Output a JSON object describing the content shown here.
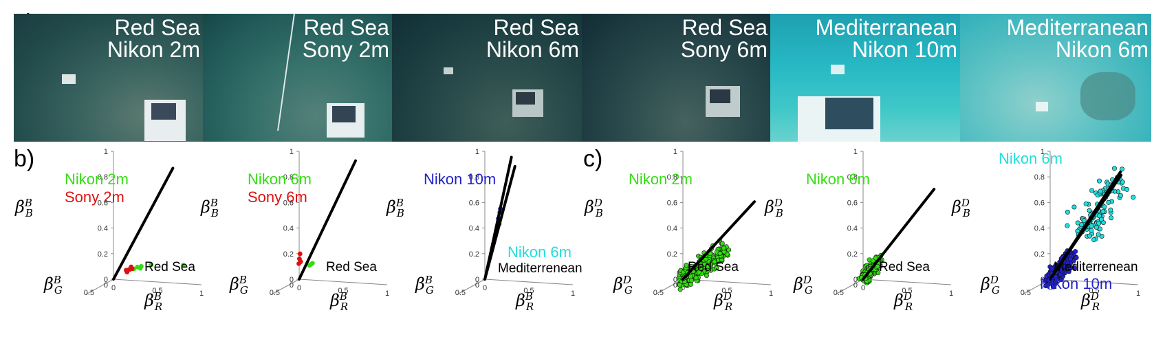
{
  "panel_labels": {
    "a": "a)",
    "b": "b)",
    "c": "c)"
  },
  "photos": [
    {
      "line1": "Red Sea",
      "line2": "Nikon 2m"
    },
    {
      "line1": "Red Sea",
      "line2": "Sony 2m"
    },
    {
      "line1": "Red Sea",
      "line2": "Nikon 6m"
    },
    {
      "line1": "Red Sea",
      "line2": "Sony 6m"
    },
    {
      "line1": "Mediterranean",
      "line2": "Nikon 10m"
    },
    {
      "line1": "Mediterranean",
      "line2": "Nikon 6m"
    }
  ],
  "axes": {
    "b": {
      "z_base": "β",
      "z_sup": "B",
      "z_sub": "B",
      "x_base": "β",
      "x_sup": "B",
      "x_sub": "R",
      "y_base": "β",
      "y_sup": "B",
      "y_sub": "G"
    },
    "c": {
      "z_base": "β",
      "z_sup": "D",
      "z_sub": "B",
      "x_base": "β",
      "x_sup": "D",
      "x_sub": "R",
      "y_base": "β",
      "y_sup": "D",
      "y_sub": "G"
    }
  },
  "colors": {
    "green": "#33dd11",
    "red": "#dd1111",
    "blue": "#2222cc",
    "cyan": "#22dddd",
    "black": "#000000"
  },
  "chart_data": [
    {
      "type": "scatter",
      "panel": "b",
      "region": "Red Sea",
      "labels": [
        "Nikon 2m",
        "Sony 2m"
      ],
      "z_ticks": [
        "0",
        "0.2",
        "0.4",
        "0.6",
        "0.8",
        "1"
      ],
      "x_ticks": [
        "0",
        "0.5",
        "1"
      ],
      "y_ticks": [
        "0",
        "0.5"
      ],
      "series": [
        {
          "name": "Nikon 2m",
          "color": "green",
          "points": [
            [
              0.3,
              0.22,
              0.12
            ],
            [
              0.35,
              0.25,
              0.14
            ],
            [
              0.4,
              0.27,
              0.15
            ],
            [
              0.38,
              0.24,
              0.13
            ],
            [
              0.52,
              0.3,
              0.17
            ],
            [
              0.25,
              0.2,
              0.11
            ],
            [
              0.95,
              0.5,
              0.21
            ]
          ]
        },
        {
          "name": "Sony 2m",
          "color": "red",
          "points": [
            [
              0.2,
              0.18,
              0.1
            ],
            [
              0.24,
              0.2,
              0.11
            ],
            [
              0.28,
              0.22,
              0.12
            ],
            [
              0.22,
              0.21,
              0.09
            ],
            [
              0.26,
              0.19,
              0.13
            ]
          ]
        }
      ],
      "fit_lines": [
        {
          "from": [
            0,
            0,
            0
          ],
          "to": [
            0.8,
            0.4,
            0.95
          ]
        }
      ]
    },
    {
      "type": "scatter",
      "panel": "b",
      "region": "Red Sea",
      "labels": [
        "Nikon 6m",
        "Sony 6m"
      ],
      "z_ticks": [
        "0",
        "0.2",
        "0.4",
        "0.6",
        "0.8",
        "1"
      ],
      "x_ticks": [
        "0",
        "0.5",
        "1"
      ],
      "y_ticks": [
        "0",
        "0.5"
      ],
      "series": [
        {
          "name": "Nikon 6m",
          "color": "green",
          "points": [
            [
              0.18,
              0.2,
              0.14
            ],
            [
              0.22,
              0.22,
              0.16
            ],
            [
              0.2,
              0.21,
              0.15
            ]
          ]
        },
        {
          "name": "Sony 6m",
          "color": "red",
          "points": [
            [
              0.05,
              0.15,
              0.18
            ],
            [
              0.06,
              0.16,
              0.22
            ],
            [
              0.04,
              0.14,
              0.14
            ],
            [
              0.07,
              0.17,
              0.16
            ]
          ]
        }
      ],
      "fit_lines": [
        {
          "from": [
            0,
            0,
            0
          ],
          "to": [
            0.75,
            0.35,
            1.0
          ]
        }
      ]
    },
    {
      "type": "scatter",
      "panel": "b",
      "region": "Mediterrenean",
      "labels": [
        "Nikon 10m",
        "Nikon 6m"
      ],
      "z_ticks": [
        "0",
        "0.2",
        "0.4",
        "0.6",
        "0.8",
        "1"
      ],
      "x_ticks": [
        "0",
        "0.5",
        "1"
      ],
      "y_ticks": [
        "0",
        "0.5"
      ],
      "series": [
        {
          "name": "Nikon 10m",
          "color": "blue",
          "points": [
            [
              0.2,
              0.15,
              0.5
            ],
            [
              0.22,
              0.16,
              0.55
            ],
            [
              0.21,
              0.15,
              0.46
            ],
            [
              0.23,
              0.17,
              0.58
            ]
          ]
        },
        {
          "name": "Nikon 6m",
          "color": "cyan",
          "points": [
            [
              0.12,
              0.12,
              0.26
            ]
          ]
        }
      ],
      "fit_lines": [
        {
          "from": [
            0,
            0,
            0
          ],
          "to": [
            0.38,
            0.25,
            1.0
          ]
        },
        {
          "from": [
            0,
            0,
            0
          ],
          "to": [
            0.42,
            0.25,
            0.93
          ]
        }
      ]
    },
    {
      "type": "scatter",
      "panel": "c",
      "region": "Red Sea",
      "labels": [
        "Nikon 2m"
      ],
      "z_ticks": [
        "0",
        "0.2",
        "0.4",
        "0.6",
        "0.8",
        "1"
      ],
      "x_ticks": [
        "0",
        "0.5",
        "1"
      ],
      "y_ticks": [
        "0",
        "0.5"
      ],
      "series": [
        {
          "name": "Nikon 2m",
          "color": "green",
          "cloud": {
            "from": [
              0.02,
              0.02,
              0.01
            ],
            "to": [
              0.62,
              0.4,
              0.32
            ],
            "count": 260,
            "spread": 0.045
          }
        }
      ],
      "fit_lines": [
        {
          "from": [
            0,
            0,
            0
          ],
          "to": [
            1.0,
            0.6,
            0.72
          ]
        }
      ]
    },
    {
      "type": "scatter",
      "panel": "c",
      "region": "Red Sea",
      "labels": [
        "Nikon 6m"
      ],
      "z_ticks": [
        "0",
        "0.2",
        "0.4",
        "0.6",
        "0.8",
        "1"
      ],
      "x_ticks": [
        "0",
        "0.5",
        "1"
      ],
      "y_ticks": [
        "0",
        "0.5"
      ],
      "series": [
        {
          "name": "Nikon 6m",
          "color": "green",
          "cloud": {
            "from": [
              0.02,
              0.02,
              0.01
            ],
            "to": [
              0.22,
              0.16,
              0.17
            ],
            "count": 200,
            "spread": 0.03
          }
        }
      ],
      "fit_lines": [
        {
          "from": [
            0,
            0,
            0
          ],
          "to": [
            1.0,
            0.62,
            0.82
          ]
        }
      ]
    },
    {
      "type": "scatter",
      "panel": "c",
      "region": "Mediterrenean",
      "labels": [
        "Nikon 6m",
        "Nikon 10m"
      ],
      "z_ticks": [
        "0",
        "0.2",
        "0.4",
        "0.6",
        "0.8",
        "1"
      ],
      "x_ticks": [
        "0",
        "0.5",
        "1"
      ],
      "y_ticks": [
        "0",
        "0.5"
      ],
      "series": [
        {
          "name": "Nikon 10m",
          "color": "blue",
          "cloud": {
            "from": [
              0.02,
              0.02,
              0.0
            ],
            "to": [
              0.3,
              0.2,
              0.22
            ],
            "count": 260,
            "spread": 0.035
          }
        },
        {
          "name": "Nikon 6m",
          "color": "cyan",
          "cloud": {
            "from": [
              0.5,
              0.35,
              0.45
            ],
            "to": [
              0.95,
              0.6,
              0.92
            ],
            "count": 110,
            "spread": 0.09
          }
        }
      ],
      "fit_lines": [
        {
          "from": [
            0,
            0,
            0
          ],
          "to": [
            1.0,
            0.62,
            0.93
          ]
        },
        {
          "from": [
            0,
            0,
            0
          ],
          "to": [
            0.98,
            0.58,
            0.95
          ]
        }
      ]
    }
  ]
}
